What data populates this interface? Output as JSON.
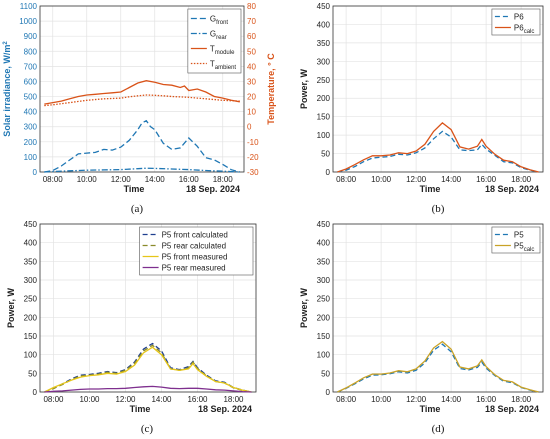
{
  "chart_data": [
    {
      "id": "a",
      "type": "line",
      "panel_label": "(a)",
      "xlabel": "Time",
      "date_label": "18 Sep. 2024",
      "xticks": [
        "08:00",
        "10:00",
        "12:00",
        "14:00",
        "16:00",
        "18:00"
      ],
      "xtick_hours": [
        8,
        10,
        12,
        14,
        16,
        18
      ],
      "xlim": [
        7.25,
        19.25
      ],
      "ylabel": "Solar irradiance, W/m²",
      "ylim": [
        0,
        1100
      ],
      "yticks": [
        0,
        100,
        200,
        300,
        400,
        500,
        600,
        700,
        800,
        900,
        1000,
        1100
      ],
      "ylabel_right": "Temperature, ° C",
      "ylim_right": [
        -30,
        80
      ],
      "yticks_right": [
        -30,
        -20,
        -10,
        0,
        10,
        20,
        30,
        40,
        50,
        60,
        70,
        80
      ],
      "grid": true,
      "legend_position": "top-right",
      "series": [
        {
          "name": "G",
          "sub": "front",
          "axis": "left",
          "color": "#1f77b4",
          "dash": "6,3",
          "x": [
            7.5,
            8,
            8.5,
            9,
            9.5,
            10,
            10.5,
            11,
            11.5,
            12,
            12.5,
            13,
            13.25,
            13.5,
            13.75,
            14,
            14.5,
            15,
            15.5,
            16,
            16.5,
            17,
            17.5,
            18,
            18.5,
            19
          ],
          "y": [
            0,
            10,
            40,
            80,
            120,
            125,
            130,
            150,
            145,
            165,
            210,
            280,
            325,
            340,
            300,
            280,
            190,
            150,
            160,
            225,
            170,
            95,
            80,
            50,
            15,
            0
          ]
        },
        {
          "name": "G",
          "sub": "rear",
          "axis": "left",
          "color": "#1f77b4",
          "dash": "6,2,1.5,2",
          "x": [
            7.5,
            8,
            9,
            10,
            11,
            12,
            13,
            13.5,
            14,
            15,
            16,
            17,
            18,
            19
          ],
          "y": [
            0,
            3,
            8,
            12,
            14,
            16,
            22,
            25,
            24,
            20,
            16,
            10,
            5,
            0
          ]
        },
        {
          "name": "T",
          "sub": "module",
          "axis": "right",
          "color": "#d95319",
          "dash": "",
          "x": [
            7.5,
            8,
            8.5,
            9,
            9.5,
            10,
            10.5,
            11,
            11.5,
            12,
            12.5,
            13,
            13.5,
            14,
            14.5,
            15,
            15.5,
            15.75,
            16,
            16.5,
            17,
            17.5,
            18,
            18.5,
            19
          ],
          "y": [
            15,
            16,
            17,
            18.5,
            20,
            21,
            21.5,
            22,
            22.5,
            23,
            26,
            29,
            30.5,
            29.5,
            28,
            27.5,
            26,
            27,
            24,
            25,
            23,
            20,
            19,
            17.5,
            16.5
          ]
        },
        {
          "name": "T",
          "sub": "ambient",
          "axis": "right",
          "color": "#d95319",
          "dash": "1.5,1.5",
          "x": [
            7.5,
            8,
            9,
            10,
            11,
            12,
            12.5,
            13,
            13.5,
            14,
            14.5,
            15,
            16,
            16.5,
            17,
            18,
            19
          ],
          "y": [
            14,
            14.5,
            16,
            17.5,
            18.5,
            19,
            19.8,
            20.5,
            21,
            20.8,
            20.5,
            20,
            19.5,
            19,
            18.5,
            17.5,
            17
          ]
        }
      ]
    },
    {
      "id": "b",
      "type": "line",
      "panel_label": "(b)",
      "xlabel": "Time",
      "date_label": "18 Sep. 2024",
      "xticks": [
        "08:00",
        "10:00",
        "12:00",
        "14:00",
        "16:00",
        "18:00"
      ],
      "xtick_hours": [
        8,
        10,
        12,
        14,
        16,
        18
      ],
      "xlim": [
        7.25,
        19.25
      ],
      "ylabel": "Power, W",
      "ylim": [
        0,
        450
      ],
      "yticks": [
        0,
        50,
        100,
        150,
        200,
        250,
        300,
        350,
        400,
        450
      ],
      "grid": true,
      "legend_position": "top-right",
      "series": [
        {
          "name": "P6",
          "sub": "",
          "color": "#1f77b4",
          "dash": "5,3",
          "x": [
            7.5,
            8,
            8.5,
            9,
            9.5,
            10,
            10.5,
            11,
            11.5,
            12,
            12.5,
            13,
            13.5,
            14,
            14.5,
            15,
            15.5,
            15.75,
            16,
            16.5,
            17,
            17.5,
            18,
            18.5,
            19
          ],
          "y": [
            0,
            5,
            15,
            28,
            38,
            40,
            42,
            48,
            46,
            52,
            65,
            90,
            110,
            95,
            60,
            58,
            60,
            75,
            62,
            45,
            28,
            25,
            12,
            5,
            0
          ]
        },
        {
          "name": "P6",
          "sub": "calc",
          "color": "#d95319",
          "dash": "",
          "x": [
            7.5,
            8,
            8.5,
            9,
            9.5,
            10,
            10.5,
            11,
            11.5,
            12,
            12.5,
            13,
            13.5,
            14,
            14.5,
            15,
            15.5,
            15.75,
            16,
            16.5,
            17,
            17.5,
            18,
            18.5,
            19
          ],
          "y": [
            0,
            8,
            20,
            33,
            44,
            44,
            46,
            52,
            50,
            57,
            75,
            110,
            133,
            115,
            68,
            62,
            70,
            88,
            70,
            48,
            32,
            28,
            14,
            6,
            0
          ]
        }
      ]
    },
    {
      "id": "c",
      "type": "line",
      "panel_label": "(c)",
      "xlabel": "Time",
      "date_label": "18 Sep. 2024",
      "xticks": [
        "08:00",
        "10:00",
        "12:00",
        "14:00",
        "16:00",
        "18:00"
      ],
      "xtick_hours": [
        8,
        10,
        12,
        14,
        16,
        18
      ],
      "xlim": [
        7.25,
        19.25
      ],
      "ylabel": "Power, W",
      "ylim": [
        0,
        450
      ],
      "yticks": [
        0,
        50,
        100,
        150,
        200,
        250,
        300,
        350,
        400,
        450
      ],
      "grid": true,
      "legend_position": "top-right",
      "series": [
        {
          "name": "P5 front calculated",
          "sub": "",
          "color": "#1f3f8f",
          "dash": "5,3",
          "x": [
            7.5,
            8,
            8.5,
            9,
            9.5,
            10,
            10.5,
            11,
            11.5,
            12,
            12.5,
            13,
            13.5,
            14,
            14.5,
            15,
            15.5,
            15.75,
            16,
            16.5,
            17,
            17.5,
            18,
            18.5,
            19
          ],
          "y": [
            0,
            10,
            22,
            35,
            45,
            47,
            50,
            55,
            52,
            60,
            80,
            115,
            130,
            110,
            65,
            60,
            68,
            82,
            65,
            45,
            30,
            26,
            12,
            5,
            0
          ]
        },
        {
          "name": "P5 rear calculated",
          "sub": "",
          "color": "#8a8a2a",
          "dash": "5,3",
          "x": [
            7.5,
            8,
            8.5,
            9,
            9.5,
            10,
            10.5,
            11,
            11.5,
            12,
            12.5,
            13,
            13.5,
            14,
            14.5,
            15,
            15.5,
            15.75,
            16,
            16.5,
            17,
            17.5,
            18,
            18.5,
            19
          ],
          "y": [
            0,
            9,
            20,
            33,
            43,
            45,
            48,
            53,
            50,
            58,
            77,
            110,
            125,
            105,
            62,
            58,
            65,
            80,
            63,
            43,
            28,
            24,
            11,
            4,
            0
          ]
        },
        {
          "name": "P5 front measured",
          "sub": "",
          "color": "#e6c619",
          "dash": "",
          "x": [
            7.5,
            8,
            8.5,
            9,
            9.5,
            10,
            10.5,
            11,
            11.5,
            12,
            12.5,
            13,
            13.5,
            14,
            14.5,
            15,
            15.5,
            15.75,
            16,
            16.5,
            17,
            17.5,
            18,
            18.5,
            19
          ],
          "y": [
            0,
            12,
            22,
            32,
            40,
            44,
            46,
            50,
            48,
            55,
            72,
            105,
            120,
            100,
            62,
            58,
            62,
            76,
            60,
            42,
            28,
            24,
            12,
            5,
            0
          ]
        },
        {
          "name": "P5 rear measured",
          "sub": "",
          "color": "#7e2f8e",
          "dash": "",
          "x": [
            7.5,
            8,
            8.5,
            9,
            9.5,
            10,
            10.5,
            11,
            11.5,
            12,
            12.5,
            13,
            13.5,
            14,
            14.5,
            15,
            15.5,
            16,
            16.5,
            17,
            17.5,
            18,
            18.5,
            19
          ],
          "y": [
            0,
            2,
            3,
            5,
            7,
            8,
            8,
            9,
            9,
            10,
            12,
            14,
            15,
            13,
            10,
            9,
            10,
            10,
            8,
            6,
            5,
            3,
            1,
            0
          ]
        }
      ]
    },
    {
      "id": "d",
      "type": "line",
      "panel_label": "(d)",
      "xlabel": "Time",
      "date_label": "18 Sep. 2024",
      "xticks": [
        "08:00",
        "10:00",
        "12:00",
        "14:00",
        "16:00",
        "18:00"
      ],
      "xtick_hours": [
        8,
        10,
        12,
        14,
        16,
        18
      ],
      "xlim": [
        7.25,
        19.25
      ],
      "ylabel": "Power, W",
      "ylim": [
        0,
        450
      ],
      "yticks": [
        0,
        50,
        100,
        150,
        200,
        250,
        300,
        350,
        400,
        450
      ],
      "grid": true,
      "legend_position": "top-right",
      "series": [
        {
          "name": "P5",
          "sub": "",
          "color": "#1f77b4",
          "dash": "5,3",
          "x": [
            7.5,
            8,
            8.5,
            9,
            9.5,
            10,
            10.5,
            11,
            11.5,
            12,
            12.5,
            13,
            13.5,
            14,
            14.5,
            15,
            15.5,
            15.75,
            16,
            16.5,
            17,
            17.5,
            18,
            18.5,
            19
          ],
          "y": [
            0,
            10,
            22,
            35,
            45,
            46,
            49,
            54,
            51,
            58,
            78,
            112,
            128,
            108,
            63,
            59,
            66,
            80,
            64,
            44,
            29,
            25,
            12,
            5,
            0
          ]
        },
        {
          "name": "P5",
          "sub": "calc",
          "color": "#c9a227",
          "dash": "",
          "x": [
            7.5,
            8,
            8.5,
            9,
            9.5,
            10,
            10.5,
            11,
            11.5,
            12,
            12.5,
            13,
            13.5,
            14,
            14.5,
            15,
            15.5,
            15.75,
            16,
            16.5,
            17,
            17.5,
            18,
            18.5,
            19
          ],
          "y": [
            0,
            11,
            24,
            38,
            48,
            48,
            51,
            57,
            54,
            62,
            83,
            118,
            135,
            115,
            67,
            62,
            70,
            86,
            68,
            46,
            31,
            27,
            13,
            6,
            0
          ]
        }
      ]
    }
  ]
}
